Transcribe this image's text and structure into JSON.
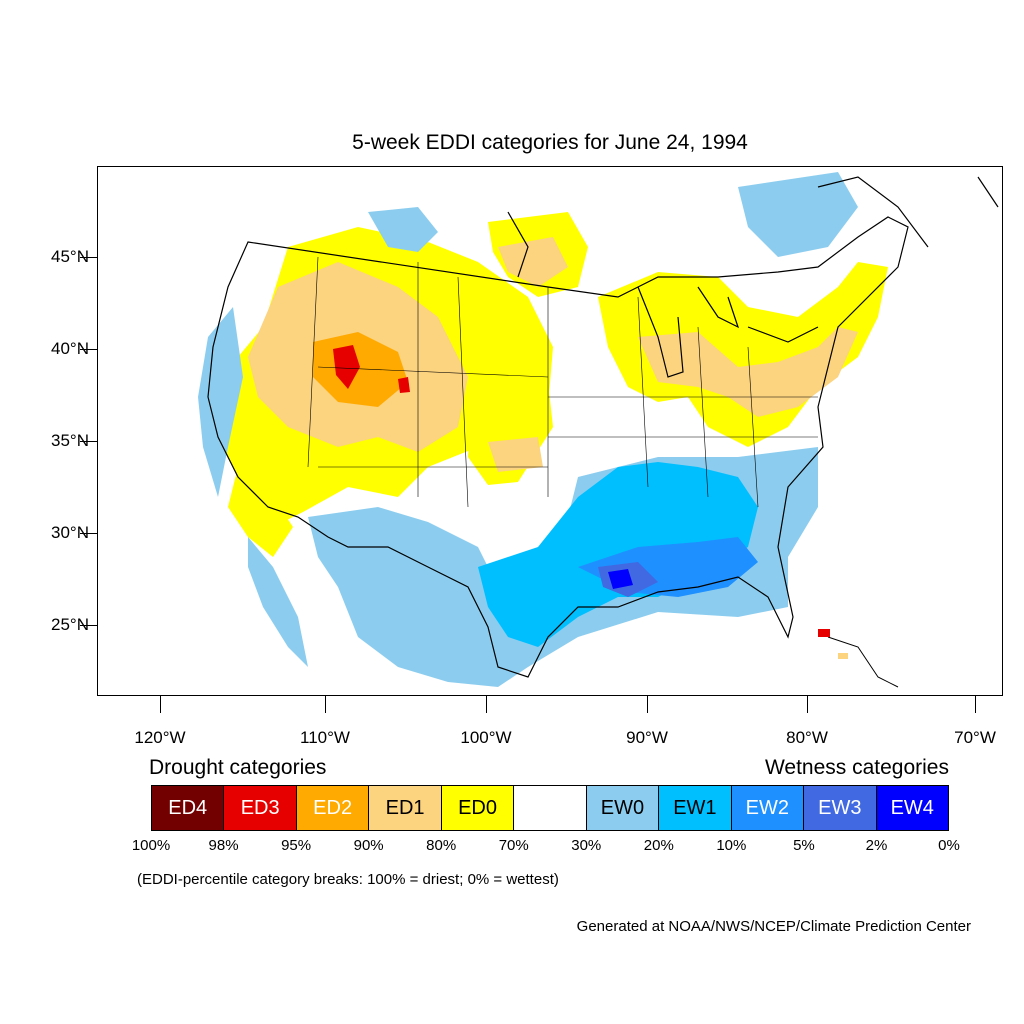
{
  "title": "5-week EDDI categories for June 24, 1994",
  "latitude_labels": [
    "45°N",
    "40°N",
    "35°N",
    "30°N",
    "25°N"
  ],
  "longitude_labels": [
    "120°W",
    "110°W",
    "100°W",
    "90°W",
    "80°W",
    "70°W"
  ],
  "legend": {
    "drought_heading": "Drought categories",
    "wetness_heading": "Wetness categories",
    "categories": [
      {
        "label": "ED4",
        "color": "#730000",
        "text_color": "#ffffff"
      },
      {
        "label": "ED3",
        "color": "#e60000",
        "text_color": "#ffffff"
      },
      {
        "label": "ED2",
        "color": "#ffaa00",
        "text_color": "#ffffff"
      },
      {
        "label": "ED1",
        "color": "#fcd37f",
        "text_color": "#000000"
      },
      {
        "label": "ED0",
        "color": "#ffff00",
        "text_color": "#000000"
      },
      {
        "label": "",
        "color": "#ffffff",
        "text_color": "#000000"
      },
      {
        "label": "EW0",
        "color": "#8ccdef",
        "text_color": "#000000"
      },
      {
        "label": "EW1",
        "color": "#00bfff",
        "text_color": "#000000"
      },
      {
        "label": "EW2",
        "color": "#1e90ff",
        "text_color": "#ffffff"
      },
      {
        "label": "EW3",
        "color": "#4169e1",
        "text_color": "#ffffff"
      },
      {
        "label": "EW4",
        "color": "#0000ff",
        "text_color": "#ffffff"
      }
    ],
    "breaks": [
      "100%",
      "98%",
      "95%",
      "90%",
      "80%",
      "70%",
      "30%",
      "20%",
      "10%",
      "5%",
      "2%",
      "0%"
    ]
  },
  "note": "(EDDI-percentile category breaks: 100% = driest; 0% = wettest)",
  "credit": "Generated at NOAA/NWS/NCEP/Climate Prediction Center"
}
